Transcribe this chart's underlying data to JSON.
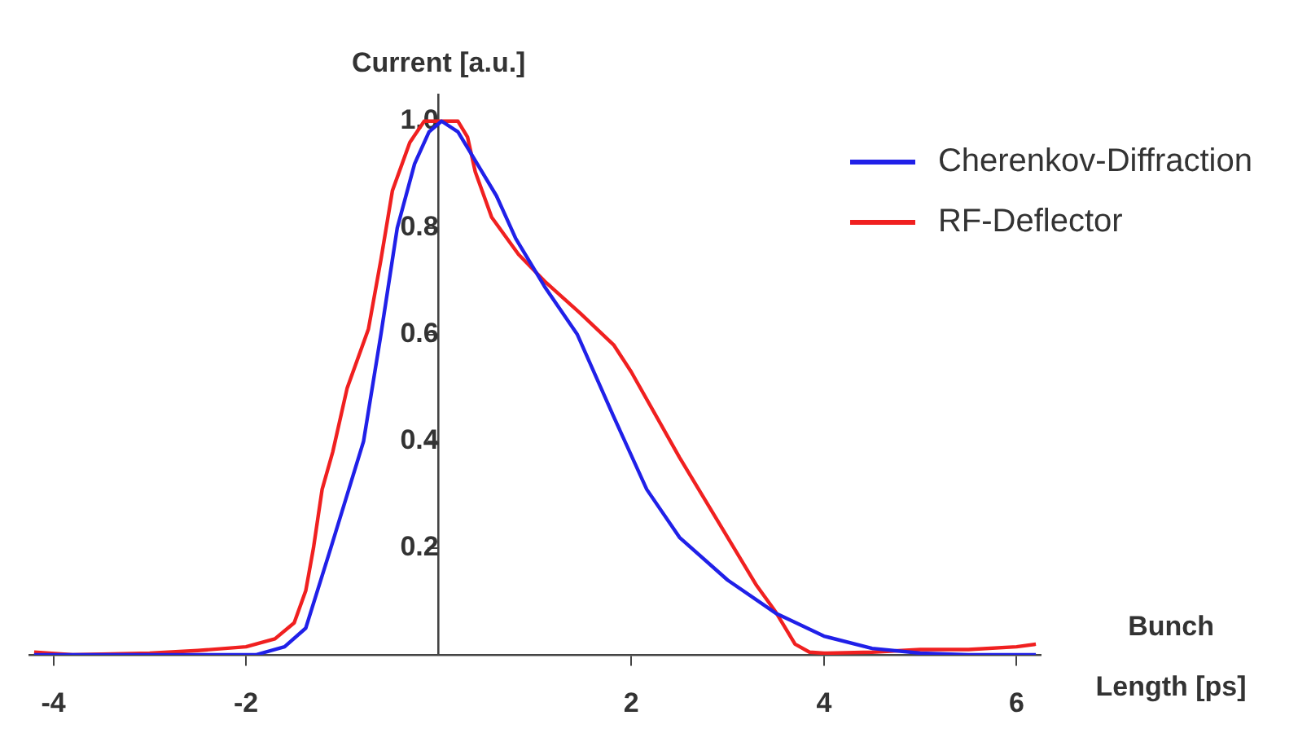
{
  "chart_data": {
    "type": "line",
    "xlabel": "Bunch Length [ps]",
    "ylabel": "Current [a.u.]",
    "xlim": [
      -4.25,
      6.25
    ],
    "ylim": [
      0,
      1.05
    ],
    "xticks": [
      -4,
      -2,
      2,
      4,
      6
    ],
    "yticks": [
      0.2,
      0.4,
      0.6,
      0.8,
      {
        "value": 1,
        "label": "1.0"
      }
    ],
    "grid": false,
    "legend": "top right",
    "marker": "none",
    "line_style": "solid",
    "series": [
      {
        "name": "Cherenkov-Diffraction",
        "color": "#2020e8",
        "x": [
          -4.2,
          -2.5,
          -1.9,
          -1.6,
          -1.38,
          -1.12,
          -0.95,
          -0.78,
          -0.6,
          -0.43,
          -0.25,
          -0.1,
          0.03,
          0.2,
          0.4,
          0.6,
          0.8,
          1.1,
          1.44,
          1.82,
          2.16,
          2.5,
          3.0,
          3.5,
          4.0,
          4.5,
          5.0,
          5.5,
          6.2
        ],
        "values": [
          0,
          0,
          0,
          0.015,
          0.05,
          0.2,
          0.3,
          0.4,
          0.6,
          0.8,
          0.92,
          0.98,
          1.0,
          0.98,
          0.92,
          0.86,
          0.78,
          0.69,
          0.6,
          0.445,
          0.31,
          0.22,
          0.14,
          0.078,
          0.035,
          0.012,
          0.003,
          0,
          0
        ]
      },
      {
        "name": "RF-Deflector",
        "color": "#f02020",
        "x": [
          -4.2,
          -3.8,
          -3.0,
          -2.5,
          -2.0,
          -1.7,
          -1.5,
          -1.38,
          -1.3,
          -1.21,
          -1.1,
          -0.95,
          -0.73,
          -0.6,
          -0.48,
          -0.3,
          -0.15,
          0.05,
          0.2,
          0.3,
          0.38,
          0.55,
          0.83,
          1.1,
          1.47,
          1.82,
          2.0,
          2.5,
          3.0,
          3.3,
          3.5,
          3.7,
          3.85,
          4.0,
          4.5,
          5.0,
          5.5,
          6.0,
          6.2
        ],
        "values": [
          0.005,
          0,
          0.003,
          0.008,
          0.015,
          0.03,
          0.06,
          0.12,
          0.2,
          0.31,
          0.38,
          0.5,
          0.61,
          0.74,
          0.87,
          0.96,
          1.0,
          1.0,
          1.0,
          0.97,
          0.905,
          0.82,
          0.75,
          0.7,
          0.64,
          0.58,
          0.53,
          0.37,
          0.22,
          0.13,
          0.08,
          0.02,
          0.005,
          0.003,
          0.005,
          0.01,
          0.01,
          0.015,
          0.02
        ]
      }
    ]
  }
}
